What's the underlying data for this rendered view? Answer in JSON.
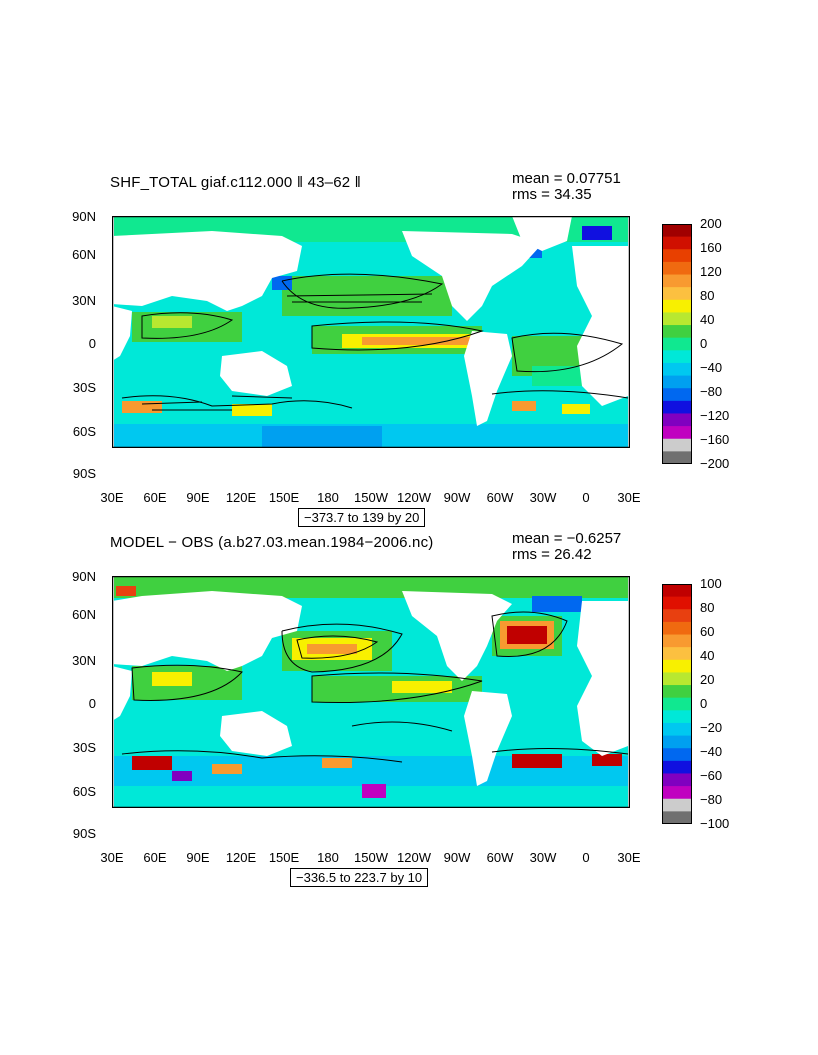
{
  "panels": [
    {
      "title": "SHF_TOTAL giaf.c112.000 ‖ 43–62 ‖",
      "mean_label": "mean = 0.07751",
      "rms_label": "rms = 34.35",
      "range_label": "−373.7 to 139 by 20",
      "colorbar": {
        "labels": [
          "200",
          "160",
          "120",
          "80",
          "40",
          "0",
          "−40",
          "−80",
          "−120",
          "−160",
          "−200"
        ],
        "colors": [
          "#a00000",
          "#d01000",
          "#e84000",
          "#f06a10",
          "#f89a30",
          "#fcc040",
          "#f8f000",
          "#b8e830",
          "#40d040",
          "#10e890",
          "#00e8d8",
          "#00c8f0",
          "#00a0f0",
          "#0068f0",
          "#1010e0",
          "#8000c0",
          "#c000c0",
          "#cccccc",
          "#707070"
        ]
      }
    },
    {
      "title": "MODEL − OBS (a.b27.03.mean.1984−2006.nc)",
      "mean_label": "mean = −0.6257",
      "rms_label": "rms = 26.42",
      "range_label": "−336.5 to 223.7 by 10",
      "colorbar": {
        "labels": [
          "100",
          "80",
          "60",
          "40",
          "20",
          "0",
          "−20",
          "−40",
          "−60",
          "−80",
          "−100"
        ],
        "colors": [
          "#c00000",
          "#e01000",
          "#e84010",
          "#f06a10",
          "#f89a30",
          "#fcc040",
          "#f8f000",
          "#b8e830",
          "#40d040",
          "#10e890",
          "#00e8d8",
          "#00c8f0",
          "#00a0f0",
          "#0068f0",
          "#1010e0",
          "#8000c0",
          "#c000c0",
          "#cccccc",
          "#707070"
        ]
      }
    }
  ],
  "axes": {
    "x_ticks": [
      "30E",
      "60E",
      "90E",
      "120E",
      "150E",
      "180",
      "150W",
      "120W",
      "90W",
      "60W",
      "30W",
      "0",
      "30E"
    ],
    "y_ticks": [
      "90N",
      "60N",
      "30N",
      "0",
      "30S",
      "60S",
      "90S"
    ]
  }
}
